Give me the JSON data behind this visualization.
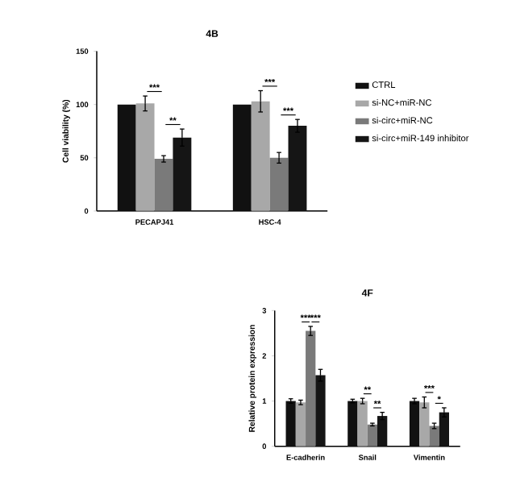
{
  "chart_data": [
    {
      "type": "bar",
      "title": "4B",
      "ylabel": "Cell viability (%)",
      "categories": [
        "PECAPJ41",
        "HSC-4"
      ],
      "ylim": [
        0,
        150
      ],
      "yticks": [
        0,
        50,
        100,
        150
      ],
      "legend": "right",
      "grid": false,
      "series": [
        {
          "name": "CTRL",
          "color": "#111111",
          "values": [
            100,
            100
          ]
        },
        {
          "name": "si-NC+miR-NC",
          "color": "#a8a8a8",
          "values": [
            101,
            103
          ],
          "errors": [
            7,
            10
          ]
        },
        {
          "name": "si-circ+miR-NC",
          "color": "#7a7a7a",
          "values": [
            49,
            50
          ],
          "errors": [
            3,
            5
          ]
        },
        {
          "name": "si-circ+miR-149 inhibitor",
          "color": "#151515",
          "values": [
            69,
            80
          ],
          "errors": [
            8,
            6
          ]
        }
      ],
      "annotations": [
        "***",
        "**",
        "***",
        "***"
      ]
    },
    {
      "type": "bar",
      "title": "4F",
      "ylabel": "Relative protein expression",
      "categories": [
        "E-cadherin",
        "Snail",
        "Vimentin"
      ],
      "ylim": [
        0,
        3
      ],
      "yticks": [
        0,
        1,
        2,
        3
      ],
      "grid": false,
      "series": [
        {
          "color": "#111111",
          "values": [
            1,
            1,
            1
          ],
          "errors": [
            0.05,
            0.04,
            0.06
          ]
        },
        {
          "color": "#a8a8a8",
          "values": [
            0.97,
            1,
            0.97
          ],
          "errors": [
            0.05,
            0.06,
            0.12
          ]
        },
        {
          "color": "#7a7a7a",
          "values": [
            2.55,
            0.48,
            0.45
          ],
          "errors": [
            0.1,
            0.03,
            0.06
          ]
        },
        {
          "color": "#151515",
          "values": [
            1.57,
            0.67,
            0.75
          ],
          "errors": [
            0.13,
            0.08,
            0.1
          ]
        }
      ],
      "annotations": [
        "***",
        "***",
        "**",
        "**",
        "***",
        "*"
      ]
    }
  ]
}
